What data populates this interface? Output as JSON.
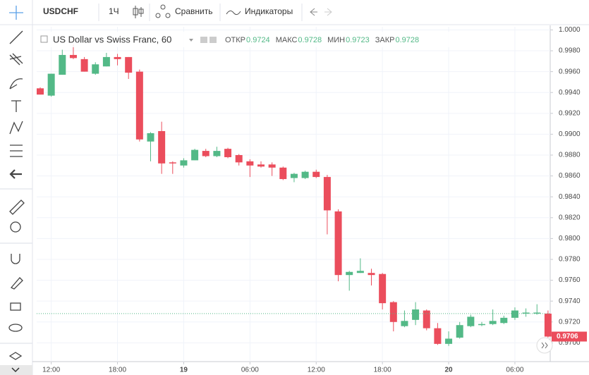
{
  "toolbar": {
    "symbol": "USDCHF",
    "interval": "1Ч",
    "compare": "Сравнить",
    "indicators": "Индикаторы"
  },
  "legend": {
    "title": "US Dollar vs Swiss Franc, 60",
    "ohlc": [
      {
        "label": "ОТКР",
        "value": "0.9724"
      },
      {
        "label": "МАКС",
        "value": "0.9728"
      },
      {
        "label": "МИН",
        "value": "0.9723"
      },
      {
        "label": "ЗАКР",
        "value": "0.9728"
      }
    ]
  },
  "chart_data": {
    "type": "candlestick",
    "categories": [
      null,
      "12:00",
      null,
      null,
      null,
      null,
      null,
      "18:00",
      null,
      null,
      null,
      null,
      null,
      "19",
      null,
      null,
      null,
      null,
      null,
      "06:00",
      null,
      null,
      null,
      null,
      null,
      "12:00",
      null,
      null,
      null,
      null,
      null,
      "18:00",
      null,
      null,
      null,
      null,
      null,
      "20",
      null,
      null,
      null,
      null,
      null,
      "06:00",
      null,
      null,
      null
    ],
    "open": [
      0.9944,
      0.9937,
      0.9957,
      0.9976,
      0.9972,
      0.9958,
      0.9965,
      0.9974,
      0.9974,
      0.996,
      0.9893,
      0.9903,
      0.9873,
      0.987,
      0.9875,
      0.9884,
      0.9879,
      0.9886,
      0.988,
      0.9874,
      0.9871,
      0.9871,
      0.9868,
      0.9858,
      0.9858,
      0.9864,
      0.9859,
      0.9826,
      0.9765,
      0.9767,
      0.9767,
      0.9766,
      0.9739,
      0.9716,
      0.9722,
      0.9731,
      0.9714,
      0.9699,
      0.9705,
      0.9716,
      0.9717,
      0.9718,
      0.9719,
      0.9724,
      0.9728,
      0.9728,
      0.9728
    ],
    "high": [
      0.9945,
      0.9958,
      0.9981,
      0.9986,
      0.9974,
      0.9969,
      0.9978,
      0.9977,
      0.9974,
      0.9962,
      0.9902,
      0.9912,
      0.9874,
      0.9877,
      0.9886,
      0.9886,
      0.9888,
      0.9887,
      0.9881,
      0.9876,
      0.9874,
      0.9873,
      0.9869,
      0.9863,
      0.9865,
      0.9866,
      0.9861,
      0.9828,
      0.9769,
      0.9781,
      0.9771,
      0.9767,
      0.974,
      0.9731,
      0.9739,
      0.9732,
      0.9719,
      0.9711,
      0.972,
      0.9727,
      0.972,
      0.9732,
      0.9726,
      0.9734,
      0.9733,
      0.9737,
      0.9731
    ],
    "low": [
      0.9938,
      0.9936,
      0.9957,
      0.9972,
      0.996,
      0.9957,
      0.9965,
      0.9966,
      0.9953,
      0.9893,
      0.9874,
      0.9862,
      0.9862,
      0.9868,
      0.9875,
      0.9878,
      0.9878,
      0.9877,
      0.987,
      0.9859,
      0.9868,
      0.986,
      0.9856,
      0.9854,
      0.9857,
      0.9858,
      0.9804,
      0.9759,
      0.975,
      0.9767,
      0.9755,
      0.9732,
      0.9711,
      0.9715,
      0.9717,
      0.9712,
      0.9698,
      0.9697,
      0.9704,
      0.9715,
      0.9716,
      0.9717,
      0.9718,
      0.9722,
      0.9725,
      0.9727,
      0.9705
    ],
    "close": [
      0.9938,
      0.9958,
      0.9976,
      0.9973,
      0.996,
      0.9967,
      0.9974,
      0.9972,
      0.9959,
      0.9895,
      0.9901,
      0.9872,
      0.9872,
      0.9875,
      0.9885,
      0.9879,
      0.9884,
      0.9878,
      0.9873,
      0.987,
      0.9869,
      0.9868,
      0.9857,
      0.9862,
      0.9864,
      0.9859,
      0.9827,
      0.9765,
      0.9768,
      0.9769,
      0.9765,
      0.9738,
      0.972,
      0.9721,
      0.9732,
      0.9714,
      0.9699,
      0.9704,
      0.9717,
      0.9725,
      0.9718,
      0.9721,
      0.9724,
      0.9731,
      0.9729,
      0.9729,
      0.9706
    ],
    "up_color": "#53b987",
    "down_color": "#eb4d5c",
    "ylim": [
      0.9682,
      1.0003
    ],
    "yticks": [
      {
        "value": 0.97,
        "label": "0.9700"
      },
      {
        "value": 0.972,
        "label": "0.9720"
      },
      {
        "value": 0.974,
        "label": "0.9740"
      },
      {
        "value": 0.976,
        "label": "0.9760"
      },
      {
        "value": 0.978,
        "label": "0.9780"
      },
      {
        "value": 0.98,
        "label": "0.9800"
      },
      {
        "value": 0.982,
        "label": "0.9820"
      },
      {
        "value": 0.984,
        "label": "0.9840"
      },
      {
        "value": 0.986,
        "label": "0.9860"
      },
      {
        "value": 0.988,
        "label": "0.9880"
      },
      {
        "value": 0.99,
        "label": "0.9900"
      },
      {
        "value": 0.992,
        "label": "0.9920"
      },
      {
        "value": 0.994,
        "label": "0.9940"
      },
      {
        "value": 0.996,
        "label": "0.9960"
      },
      {
        "value": 0.998,
        "label": "0.9980"
      },
      {
        "value": 1.0,
        "label": "1.0000"
      }
    ],
    "last_price": {
      "value": 0.9706,
      "label": "0.9706"
    },
    "price_line": 0.9728,
    "grid": true
  }
}
